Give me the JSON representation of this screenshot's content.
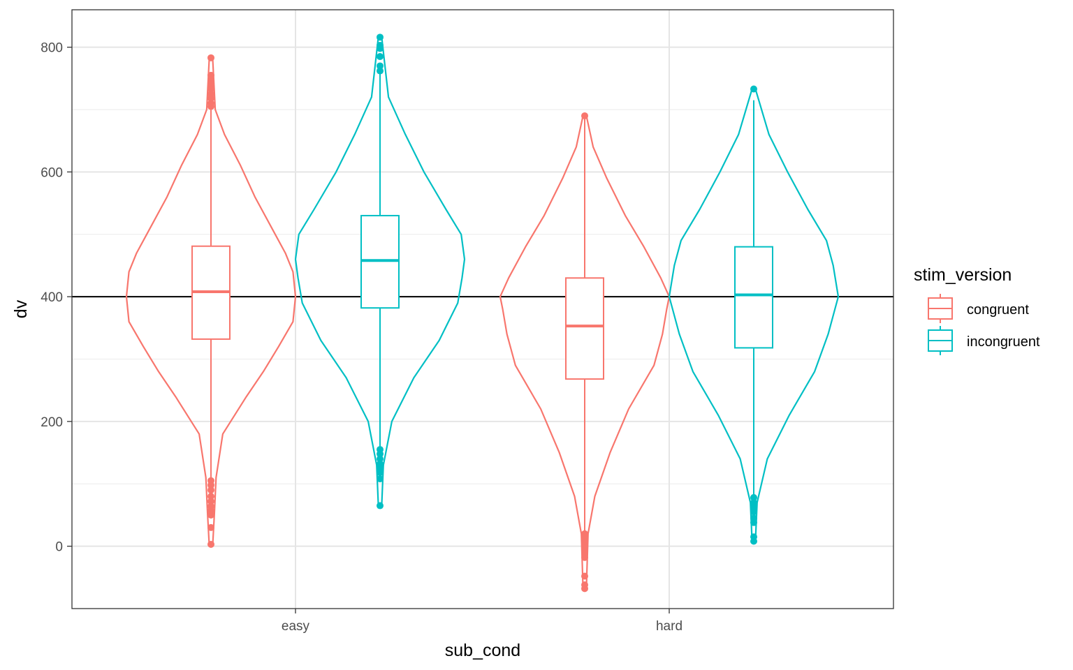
{
  "chart_data": {
    "type": "violin",
    "xlabel": "sub_cond",
    "ylabel": "dv",
    "categories": [
      "easy",
      "hard"
    ],
    "y_ticks": [
      0,
      200,
      400,
      600,
      800
    ],
    "y_tick_labels": [
      "0",
      "200",
      "400",
      "600",
      "800"
    ],
    "ylim": [
      -100,
      860
    ],
    "reference_line": 400,
    "grid": true,
    "legend": {
      "title": "stim_version",
      "placement": "right",
      "entries": [
        "congruent",
        "incongruent"
      ]
    },
    "colors": {
      "congruent": "#F8766D",
      "incongruent": "#00BFC4",
      "reference": "#000000"
    },
    "series": [
      {
        "name": "congruent",
        "groups": [
          {
            "category": "easy",
            "box": {
              "q1": 332,
              "median": 408,
              "q3": 481,
              "whisker_low": 110,
              "whisker_high": 702
            },
            "outliers": [
              783,
              755,
              748,
              740,
              733,
              725,
              718,
              710,
              705,
              105,
              98,
              90,
              80,
              72,
              64,
              57,
              50,
              30,
              3
            ],
            "density": [
              [
                0,
                0.02
              ],
              [
                50,
                0.04
              ],
              [
                110,
                0.06
              ],
              [
                180,
                0.14
              ],
              [
                240,
                0.42
              ],
              [
                280,
                0.62
              ],
              [
                320,
                0.8
              ],
              [
                360,
                0.97
              ],
              [
                400,
                1.0
              ],
              [
                440,
                0.97
              ],
              [
                470,
                0.88
              ],
              [
                510,
                0.72
              ],
              [
                560,
                0.52
              ],
              [
                610,
                0.35
              ],
              [
                660,
                0.16
              ],
              [
                700,
                0.05
              ],
              [
                783,
                0.02
              ]
            ]
          },
          {
            "category": "hard",
            "box": {
              "q1": 268,
              "median": 353,
              "q3": 430,
              "whisker_low": 25,
              "whisker_high": 690
            },
            "outliers": [
              690,
              20,
              15,
              10,
              5,
              0,
              -5,
              -10,
              -18,
              -48,
              -62,
              -68
            ],
            "density": [
              [
                -68,
                0.02
              ],
              [
                20,
                0.04
              ],
              [
                80,
                0.12
              ],
              [
                150,
                0.3
              ],
              [
                220,
                0.52
              ],
              [
                290,
                0.82
              ],
              [
                340,
                0.92
              ],
              [
                380,
                0.97
              ],
              [
                400,
                1.0
              ],
              [
                430,
                0.9
              ],
              [
                480,
                0.7
              ],
              [
                530,
                0.48
              ],
              [
                590,
                0.26
              ],
              [
                640,
                0.1
              ],
              [
                690,
                0.02
              ]
            ]
          }
        ]
      },
      {
        "name": "incongruent",
        "groups": [
          {
            "category": "easy",
            "box": {
              "q1": 382,
              "median": 458,
              "q3": 530,
              "whisker_low": 155,
              "whisker_high": 760
            },
            "outliers": [
              816,
              803,
              798,
              785,
              770,
              762,
              155,
              148,
              140,
              132,
              125,
              118,
              108,
              65
            ],
            "density": [
              [
                65,
                0.02
              ],
              [
                130,
                0.04
              ],
              [
                200,
                0.14
              ],
              [
                270,
                0.4
              ],
              [
                330,
                0.7
              ],
              [
                390,
                0.92
              ],
              [
                430,
                0.97
              ],
              [
                460,
                1.0
              ],
              [
                500,
                0.96
              ],
              [
                540,
                0.78
              ],
              [
                600,
                0.52
              ],
              [
                660,
                0.3
              ],
              [
                720,
                0.1
              ],
              [
                816,
                0.02
              ]
            ]
          },
          {
            "category": "hard",
            "box": {
              "q1": 318,
              "median": 403,
              "q3": 480,
              "whisker_low": 80,
              "whisker_high": 715
            },
            "outliers": [
              733,
              78,
              70,
              62,
              55,
              45,
              38,
              15,
              8
            ],
            "density": [
              [
                8,
                0.02
              ],
              [
                70,
                0.04
              ],
              [
                140,
                0.16
              ],
              [
                210,
                0.42
              ],
              [
                280,
                0.72
              ],
              [
                340,
                0.88
              ],
              [
                400,
                1.0
              ],
              [
                450,
                0.94
              ],
              [
                490,
                0.86
              ],
              [
                540,
                0.64
              ],
              [
                600,
                0.4
              ],
              [
                660,
                0.18
              ],
              [
                733,
                0.02
              ]
            ]
          }
        ]
      }
    ]
  }
}
